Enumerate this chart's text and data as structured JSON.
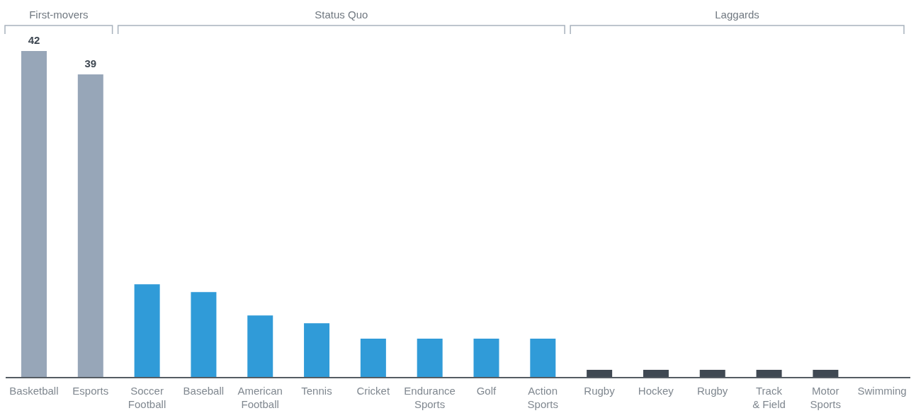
{
  "chart_data": {
    "type": "bar",
    "stacked": true,
    "annotations": [
      "First-movers",
      "Status Quo",
      "Laggards"
    ],
    "categories": [
      "Basketball",
      "Esports",
      "Soccer Football",
      "Baseball",
      "American Football",
      "Tennis",
      "Cricket",
      "Endurance Sports",
      "Golf",
      "Action Sports",
      "Rugby",
      "Hockey",
      "Rugby",
      "Track & Field",
      "Motor Sports",
      "Swimming"
    ],
    "series": [
      {
        "color": "#97a6b8",
        "values": [
          42,
          39,
          null,
          null,
          null,
          null,
          null,
          null,
          null,
          null,
          null,
          null,
          null,
          null,
          null,
          null
        ],
        "value_labels": [
          "42",
          "39",
          null,
          null,
          null,
          null,
          null,
          null,
          null,
          null,
          null,
          null,
          null,
          null,
          null,
          null
        ]
      },
      {
        "color": "#309bd8",
        "values": [
          null,
          null,
          12,
          11,
          8,
          7,
          5,
          5,
          5,
          5,
          null,
          null,
          null,
          null,
          null,
          null
        ]
      },
      {
        "color": "#3f4852",
        "values": [
          null,
          null,
          null,
          null,
          null,
          null,
          null,
          null,
          null,
          null,
          1,
          1,
          1,
          1,
          1,
          0
        ]
      }
    ]
  }
}
